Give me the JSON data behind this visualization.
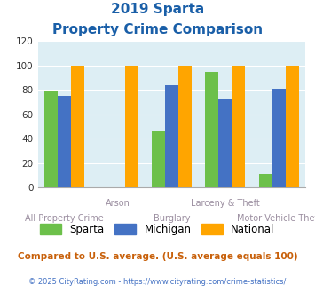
{
  "title_line1": "2019 Sparta",
  "title_line2": "Property Crime Comparison",
  "categories": [
    "All Property Crime",
    "Arson",
    "Burglary",
    "Larceny & Theft",
    "Motor Vehicle Theft"
  ],
  "sparta": [
    79,
    0,
    47,
    95,
    11
  ],
  "michigan": [
    75,
    0,
    84,
    73,
    81
  ],
  "national": [
    100,
    100,
    100,
    100,
    100
  ],
  "sparta_color": "#6cc04a",
  "michigan_color": "#4472c4",
  "national_color": "#ffa500",
  "bg_color": "#ddeef4",
  "ylim": [
    0,
    120
  ],
  "yticks": [
    0,
    20,
    40,
    60,
    80,
    100,
    120
  ],
  "xlabel_top": [
    "",
    "Arson",
    "",
    "Larceny & Theft",
    ""
  ],
  "xlabel_bottom": [
    "All Property Crime",
    "",
    "Burglary",
    "",
    "Motor Vehicle Theft"
  ],
  "footnote1": "Compared to U.S. average. (U.S. average equals 100)",
  "footnote2": "© 2025 CityRating.com - https://www.cityrating.com/crime-statistics/",
  "title_color": "#1a5fa8",
  "xlabel_color": "#9b8ea0",
  "footnote1_color": "#c8600a",
  "footnote2_color": "#4472c4"
}
